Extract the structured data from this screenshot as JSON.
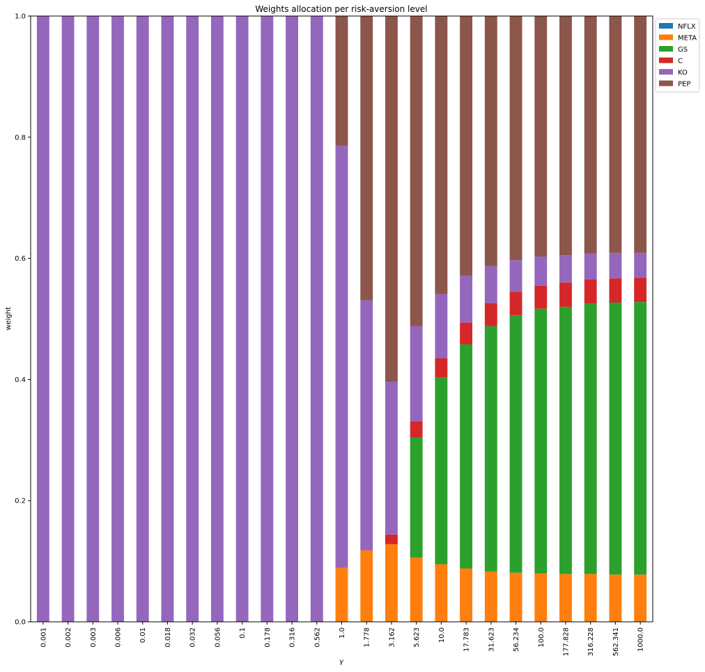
{
  "chart_data": {
    "type": "bar",
    "stacked": true,
    "title": "Weights allocation per risk-aversion level",
    "xlabel": "γ",
    "ylabel": "weight",
    "ylim": [
      0,
      1
    ],
    "yticks": [
      "0.0",
      "0.2",
      "0.4",
      "0.6",
      "0.8",
      "1.0"
    ],
    "legend_position": "outside-top-right",
    "categories": [
      "0.001",
      "0.002",
      "0.003",
      "0.006",
      "0.01",
      "0.018",
      "0.032",
      "0.056",
      "0.1",
      "0.178",
      "0.316",
      "0.562",
      "1.0",
      "1.778",
      "3.162",
      "5.623",
      "10.0",
      "17.783",
      "31.623",
      "56.234",
      "100.0",
      "177.828",
      "316.228",
      "562.341",
      "1000.0"
    ],
    "series": [
      {
        "name": "NFLX",
        "color": "#1f77b4",
        "values": [
          0,
          0,
          0,
          0,
          0,
          0,
          0,
          0,
          0,
          0,
          0,
          0,
          0,
          0,
          0,
          0,
          0,
          0,
          0,
          0,
          0,
          0,
          0,
          0,
          0
        ]
      },
      {
        "name": "META",
        "color": "#ff7f0e",
        "values": [
          0,
          0,
          0,
          0,
          0,
          0,
          0,
          0,
          0,
          0,
          0,
          0,
          0.089,
          0.118,
          0.128,
          0.106,
          0.095,
          0.088,
          0.083,
          0.081,
          0.08,
          0.079,
          0.079,
          0.078,
          0.078
        ]
      },
      {
        "name": "GS",
        "color": "#2ca02c",
        "values": [
          0,
          0,
          0,
          0,
          0,
          0,
          0,
          0,
          0,
          0,
          0,
          0,
          0,
          0,
          0,
          0.198,
          0.308,
          0.37,
          0.405,
          0.425,
          0.437,
          0.441,
          0.446,
          0.449,
          0.45
        ]
      },
      {
        "name": "C",
        "color": "#d62728",
        "values": [
          0,
          0,
          0,
          0,
          0,
          0,
          0,
          0,
          0,
          0,
          0,
          0,
          0,
          0,
          0.016,
          0.027,
          0.032,
          0.036,
          0.038,
          0.039,
          0.038,
          0.04,
          0.04,
          0.04,
          0.04
        ]
      },
      {
        "name": "KO",
        "color": "#9467bd",
        "values": [
          1,
          1,
          1,
          1,
          1,
          1,
          1,
          1,
          1,
          1,
          1,
          1,
          0.697,
          0.413,
          0.252,
          0.157,
          0.106,
          0.077,
          0.061,
          0.052,
          0.048,
          0.045,
          0.043,
          0.042,
          0.041
        ]
      },
      {
        "name": "PEP",
        "color": "#8c564b",
        "values": [
          0,
          0,
          0,
          0,
          0,
          0,
          0,
          0,
          0,
          0,
          0,
          0,
          0.214,
          0.469,
          0.604,
          0.512,
          0.459,
          0.429,
          0.413,
          0.403,
          0.397,
          0.395,
          0.392,
          0.391,
          0.391
        ]
      }
    ]
  }
}
